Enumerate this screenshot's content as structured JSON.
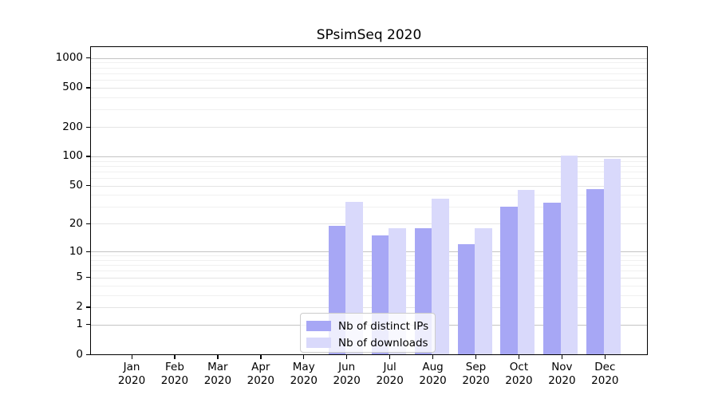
{
  "chart_data": {
    "type": "bar",
    "title": "SPsimSeq 2020",
    "x": {
      "months": [
        "Jan",
        "Feb",
        "Mar",
        "Apr",
        "May",
        "Jun",
        "Jul",
        "Aug",
        "Sep",
        "Oct",
        "Nov",
        "Dec"
      ],
      "year": "2020",
      "categories": [
        "Jan 2020",
        "Feb 2020",
        "Mar 2020",
        "Apr 2020",
        "May 2020",
        "Jun 2020",
        "Jul 2020",
        "Aug 2020",
        "Sep 2020",
        "Oct 2020",
        "Nov 2020",
        "Dec 2020"
      ]
    },
    "series": [
      {
        "name": "Nb of distinct IPs",
        "color": "#a7a7f5",
        "values": [
          0,
          0,
          0,
          0,
          0,
          19,
          15,
          18,
          12,
          30,
          33,
          46
        ]
      },
      {
        "name": "Nb of downloads",
        "color": "#d9d9fb",
        "values": [
          0,
          0,
          0,
          0,
          0,
          34,
          18,
          37,
          18,
          45,
          102,
          94
        ]
      }
    ],
    "y_axis": {
      "scale": "log1p",
      "tick_labels": [
        "1000",
        "500",
        "200",
        "100",
        "50",
        "20",
        "10",
        "5",
        "2",
        "1",
        "0"
      ],
      "tick_values": [
        1000,
        500,
        200,
        100,
        50,
        20,
        10,
        5,
        2,
        1,
        0
      ],
      "range_top": 1290
    },
    "grid": true,
    "legend": {
      "position": "lower-center",
      "entries": [
        "Nb of distinct IPs",
        "Nb of downloads"
      ]
    }
  },
  "colors": {
    "major_grid": "#c4c4c4",
    "mid_grid": "#e4e4e4",
    "minor_grid": "#f0f0f0",
    "spine": "#000000",
    "legend_border": "#cccccc"
  }
}
